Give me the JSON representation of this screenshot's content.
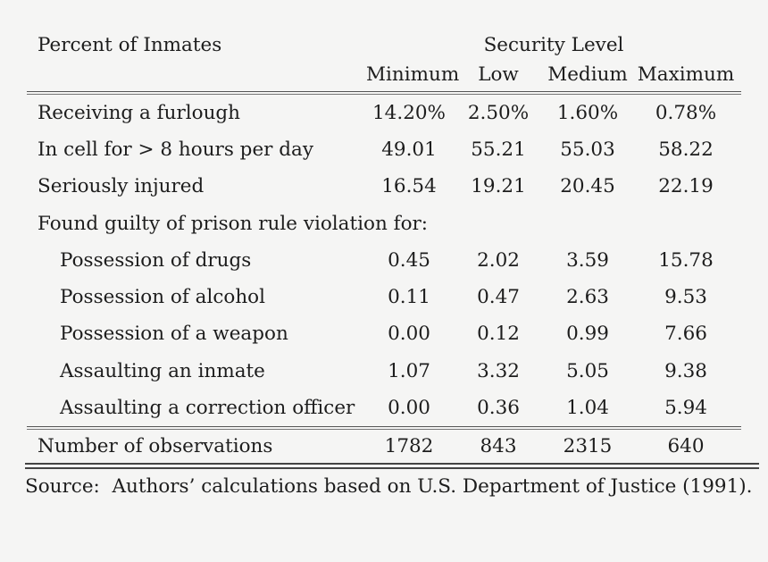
{
  "page": {
    "background_color": "#f5f5f4",
    "text_color": "#1d1d1d",
    "rule_color": "#555555"
  },
  "table": {
    "row_group_header": "Percent of Inmates",
    "col_group_header": "Security Level",
    "columns": [
      "Minimum",
      "Low",
      "Medium",
      "Maximum"
    ],
    "rows": [
      {
        "label": "Receiving a furlough",
        "values": [
          "14.20%",
          "2.50%",
          "1.60%",
          "0.78%"
        ]
      },
      {
        "label": "In cell for > 8 hours per day",
        "values": [
          "49.01",
          "55.21",
          "55.03",
          "58.22"
        ]
      },
      {
        "label": "Seriously injured",
        "values": [
          "16.54",
          "19.21",
          "20.45",
          "22.19"
        ]
      },
      {
        "label": "Found guilty of prison rule violation for:",
        "values": [
          "",
          "",
          "",
          ""
        ]
      },
      {
        "label": "Possession of drugs",
        "values": [
          "0.45",
          "2.02",
          "3.59",
          "15.78"
        ]
      },
      {
        "label": "Possession of alcohol",
        "values": [
          "0.11",
          "0.47",
          "2.63",
          "9.53"
        ]
      },
      {
        "label": "Possession of a weapon",
        "values": [
          "0.00",
          "0.12",
          "0.99",
          "7.66"
        ]
      },
      {
        "label": "Assaulting an inmate",
        "values": [
          "1.07",
          "3.32",
          "5.05",
          "9.38"
        ]
      },
      {
        "label": "Assaulting a correction officer",
        "values": [
          "0.00",
          "0.36",
          "1.04",
          "5.94"
        ]
      }
    ],
    "footer_row": {
      "label": "Number of observations",
      "values": [
        "1782",
        "843",
        "2315",
        "640"
      ]
    },
    "source_note": "Source:  Authors’ calculations based on U.S. Department of Justice (1991)."
  }
}
